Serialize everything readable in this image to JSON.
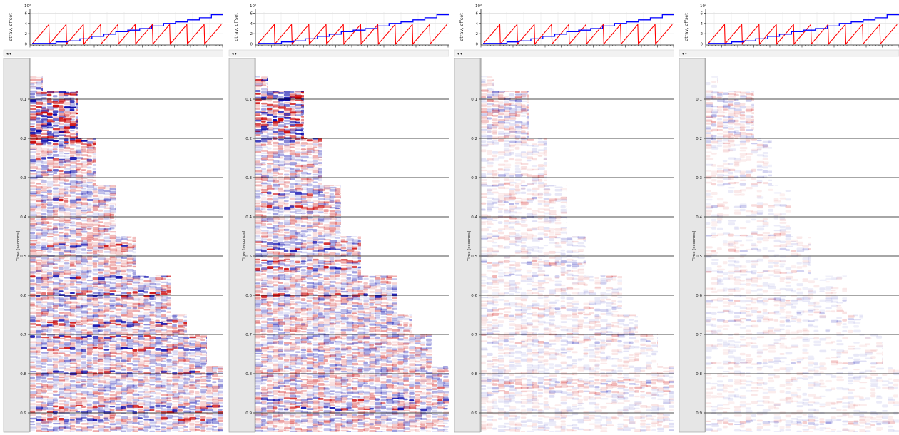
{
  "colors": {
    "positive": "#cc0000",
    "negative": "#0000aa",
    "headerBlue": "#0000ff",
    "headerRed": "#ff0000",
    "strip": "#e6e6e6"
  },
  "chart_data": [
    {
      "type": "line",
      "panel": 1,
      "header": {
        "ylabel": "otrav, offset",
        "exponent": "10²",
        "yticks": [
          "6",
          "4",
          "2",
          "0"
        ],
        "ylim": [
          -0.2,
          6.2
        ]
      },
      "otrav_steps": [
        0.1,
        0.1,
        0.4,
        0.6,
        1.0,
        1.5,
        1.9,
        2.4,
        2.7,
        3.0,
        3.5,
        4.0,
        4.3,
        4.7,
        5.1,
        5.7
      ],
      "offset_teeth": 11,
      "offset_peak": 3.8,
      "main": {
        "ylabel": "Time [seconds]",
        "yticks": [
          "0.1",
          "0.2",
          "0.3",
          "0.4",
          "0.5",
          "0.6",
          "0.7",
          "0.8",
          "0.9"
        ],
        "ylim": [
          0,
          1.0
        ]
      },
      "amplitude": 1.0
    },
    {
      "type": "line",
      "panel": 2,
      "header": {
        "ylabel": "otrav, offset",
        "exponent": "10²",
        "yticks": [
          "6",
          "4",
          "2",
          "0"
        ],
        "ylim": [
          -0.2,
          6.2
        ]
      },
      "otrav_steps": [
        0.1,
        0.1,
        0.4,
        0.6,
        1.0,
        1.5,
        1.9,
        2.4,
        2.7,
        3.0,
        3.5,
        4.0,
        4.3,
        4.7,
        5.1,
        5.7
      ],
      "offset_teeth": 11,
      "offset_peak": 3.8,
      "main": {
        "ylabel": "Time [seconds]",
        "yticks": [
          "0.1",
          "0.2",
          "0.3",
          "0.4",
          "0.5",
          "0.6",
          "0.7",
          "0.8",
          "0.9"
        ],
        "ylim": [
          0,
          1.0
        ]
      },
      "amplitude": 1.0
    },
    {
      "type": "line",
      "panel": 3,
      "header": {
        "ylabel": "otrav, offset",
        "exponent": "10²",
        "yticks": [
          "6",
          "4",
          "2",
          "0"
        ],
        "ylim": [
          -0.2,
          6.2
        ]
      },
      "otrav_steps": [
        0.1,
        0.1,
        0.4,
        0.6,
        1.0,
        1.5,
        1.9,
        2.4,
        2.7,
        3.0,
        3.5,
        4.0,
        4.3,
        4.7,
        5.1,
        5.7
      ],
      "offset_teeth": 11,
      "offset_peak": 3.8,
      "main": {
        "ylabel": "Time [seconds]",
        "yticks": [
          "0.1",
          "0.2",
          "0.3",
          "0.4",
          "0.5",
          "0.6",
          "0.7",
          "0.8",
          "0.9"
        ],
        "ylim": [
          0,
          1.0
        ]
      },
      "amplitude": 0.32
    },
    {
      "type": "line",
      "panel": 4,
      "header": {
        "ylabel": "otrav, offset",
        "exponent": "10²",
        "yticks": [
          "6",
          "4",
          "2",
          "0"
        ],
        "ylim": [
          -0.2,
          6.2
        ]
      },
      "otrav_steps": [
        0.1,
        0.1,
        0.4,
        0.6,
        1.0,
        1.5,
        1.9,
        2.4,
        2.7,
        3.0,
        3.5,
        4.0,
        4.3,
        4.7,
        5.1,
        5.7
      ],
      "offset_teeth": 11,
      "offset_peak": 3.8,
      "main": {
        "ylabel": "Time [seconds]",
        "yticks": [
          "0.1",
          "0.2",
          "0.3",
          "0.4",
          "0.5",
          "0.6",
          "0.7",
          "0.8",
          "0.9"
        ],
        "ylim": [
          0,
          1.0
        ]
      },
      "amplitude": 0.24
    }
  ]
}
